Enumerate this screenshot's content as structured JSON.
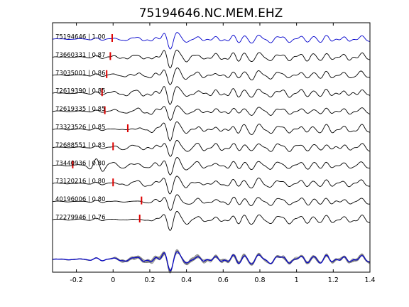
{
  "chart_data": {
    "type": "line",
    "title": "75194646.NC.MEM.EHZ",
    "xlabel": "",
    "ylabel": "",
    "xlim": [
      -0.33,
      1.4
    ],
    "x_ticks": [
      -0.2,
      0,
      0.2,
      0.4,
      0.6,
      0.8,
      1,
      1.2,
      1.4
    ],
    "x_tick_labels": [
      "-0.2",
      "0",
      "0.2",
      "0.4",
      "0.6",
      "0.8",
      "1",
      "1.2",
      "1.4"
    ],
    "grid": false,
    "legend": "none",
    "traces": [
      {
        "event_id": "75194646",
        "cc": "1.00",
        "pick_time": -0.005,
        "color": "#0000cc"
      },
      {
        "event_id": "73660331",
        "cc": "0.87",
        "pick_time": -0.015,
        "color": "#000000"
      },
      {
        "event_id": "73035001",
        "cc": "0.86",
        "pick_time": -0.035,
        "color": "#000000"
      },
      {
        "event_id": "72619390",
        "cc": "0.85",
        "pick_time": -0.06,
        "color": "#000000"
      },
      {
        "event_id": "72619335",
        "cc": "0.85",
        "pick_time": -0.045,
        "color": "#000000"
      },
      {
        "event_id": "73323526",
        "cc": "0.85",
        "pick_time": 0.08,
        "color": "#000000"
      },
      {
        "event_id": "72688551",
        "cc": "0.83",
        "pick_time": 0.0,
        "color": "#000000"
      },
      {
        "event_id": "73440936",
        "cc": "0.80",
        "pick_time": -0.22,
        "color": "#000000"
      },
      {
        "event_id": "73120216",
        "cc": "0.80",
        "pick_time": 0.0,
        "color": "#000000"
      },
      {
        "event_id": "40196006",
        "cc": "0.80",
        "pick_time": 0.155,
        "color": "#000000"
      },
      {
        "event_id": "72279946",
        "cc": "0.76",
        "pick_time": 0.145,
        "color": "#000000"
      }
    ],
    "stack_colors": {
      "master": "#0000cc",
      "others": "#808080"
    },
    "pick_color": "#dd0000"
  }
}
